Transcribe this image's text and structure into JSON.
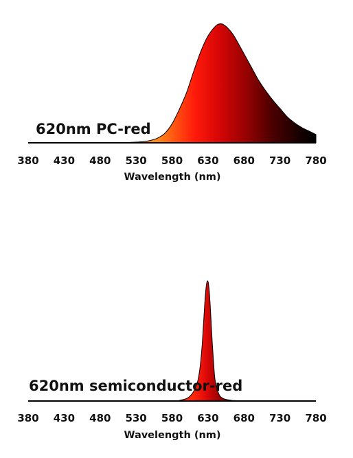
{
  "chart_data": [
    {
      "type": "area",
      "title": "620nm PC-red",
      "xlabel": "Wavelength (nm)",
      "ylabel": "",
      "xlim": [
        380,
        780
      ],
      "ylim": [
        0,
        1
      ],
      "x_ticks": [
        "380",
        "430",
        "480",
        "530",
        "580",
        "630",
        "680",
        "730",
        "780"
      ],
      "grid": false,
      "series": [
        {
          "x": [
            380,
            500,
            520,
            540,
            550,
            560,
            570,
            580,
            590,
            600,
            610,
            620,
            630,
            640,
            645,
            650,
            655,
            660,
            665,
            670,
            680,
            690,
            700,
            710,
            720,
            730,
            740,
            750,
            760,
            770,
            780
          ],
          "y": [
            0,
            0,
            0.003,
            0.01,
            0.02,
            0.04,
            0.08,
            0.16,
            0.28,
            0.42,
            0.6,
            0.77,
            0.9,
            0.98,
            1.0,
            1.0,
            0.98,
            0.95,
            0.91,
            0.86,
            0.75,
            0.64,
            0.53,
            0.44,
            0.36,
            0.29,
            0.22,
            0.17,
            0.13,
            0.1,
            0.07
          ]
        }
      ]
    },
    {
      "type": "area",
      "title": "620nm semiconductor-red",
      "xlabel": "Wavelength (nm)",
      "ylabel": "",
      "xlim": [
        380,
        780
      ],
      "ylim": [
        0,
        1
      ],
      "x_ticks": [
        "380",
        "430",
        "480",
        "530",
        "580",
        "630",
        "680",
        "730",
        "780"
      ],
      "grid": false,
      "series": [
        {
          "x": [
            380,
            580,
            590,
            600,
            605,
            610,
            615,
            618,
            620,
            622,
            624,
            626,
            628,
            630,
            632,
            634,
            636,
            638,
            640,
            645,
            650,
            660,
            680,
            780
          ],
          "y": [
            0,
            0,
            0.005,
            0.02,
            0.04,
            0.08,
            0.15,
            0.24,
            0.34,
            0.48,
            0.67,
            0.86,
            0.98,
            1.0,
            0.9,
            0.7,
            0.48,
            0.3,
            0.17,
            0.06,
            0.025,
            0.008,
            0.002,
            0
          ]
        }
      ]
    }
  ]
}
